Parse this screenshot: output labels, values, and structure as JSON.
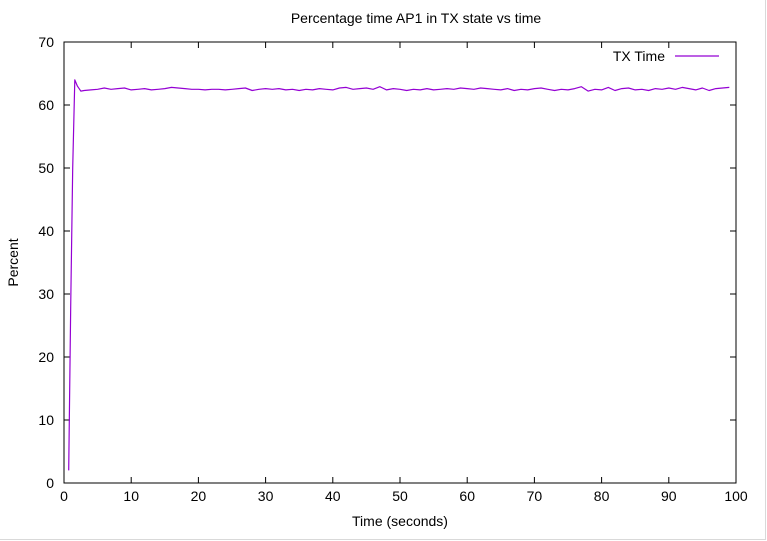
{
  "chart_data": {
    "type": "line",
    "title": "Percentage time AP1 in TX state vs time",
    "xlabel": "Time (seconds)",
    "ylabel": "Percent",
    "xlim": [
      0,
      100
    ],
    "ylim": [
      0,
      70
    ],
    "xticks": [
      0,
      10,
      20,
      30,
      40,
      50,
      60,
      70,
      80,
      90,
      100
    ],
    "yticks": [
      0,
      10,
      20,
      30,
      40,
      50,
      60,
      70
    ],
    "grid": false,
    "legend_position": "top-right",
    "series": [
      {
        "name": "TX Time",
        "color": "#9400d3",
        "x": [
          0.7,
          1.0,
          1.3,
          1.6,
          2.0,
          2.5,
          3,
          4,
          5,
          6,
          7,
          8,
          9,
          10,
          11,
          12,
          13,
          14,
          15,
          16,
          17,
          18,
          19,
          20,
          21,
          22,
          23,
          24,
          25,
          26,
          27,
          28,
          29,
          30,
          31,
          32,
          33,
          34,
          35,
          36,
          37,
          38,
          39,
          40,
          41,
          42,
          43,
          44,
          45,
          46,
          47,
          48,
          49,
          50,
          51,
          52,
          53,
          54,
          55,
          56,
          57,
          58,
          59,
          60,
          61,
          62,
          63,
          64,
          65,
          66,
          67,
          68,
          69,
          70,
          71,
          72,
          73,
          74,
          75,
          76,
          77,
          78,
          79,
          80,
          81,
          82,
          83,
          84,
          85,
          86,
          87,
          88,
          89,
          90,
          91,
          92,
          93,
          94,
          95,
          96,
          97,
          98,
          99
        ],
        "y": [
          2,
          28,
          50,
          64,
          63,
          62.2,
          62.3,
          62.4,
          62.5,
          62.7,
          62.5,
          62.6,
          62.7,
          62.4,
          62.5,
          62.6,
          62.4,
          62.5,
          62.6,
          62.8,
          62.7,
          62.6,
          62.5,
          62.5,
          62.4,
          62.5,
          62.5,
          62.4,
          62.5,
          62.6,
          62.7,
          62.3,
          62.5,
          62.6,
          62.5,
          62.6,
          62.4,
          62.5,
          62.3,
          62.5,
          62.4,
          62.6,
          62.5,
          62.4,
          62.7,
          62.8,
          62.5,
          62.6,
          62.7,
          62.5,
          62.9,
          62.4,
          62.6,
          62.5,
          62.3,
          62.5,
          62.4,
          62.6,
          62.4,
          62.5,
          62.6,
          62.5,
          62.7,
          62.6,
          62.5,
          62.7,
          62.6,
          62.5,
          62.4,
          62.6,
          62.3,
          62.5,
          62.4,
          62.6,
          62.7,
          62.5,
          62.3,
          62.5,
          62.4,
          62.6,
          62.9,
          62.2,
          62.5,
          62.4,
          62.8,
          62.3,
          62.6,
          62.7,
          62.4,
          62.5,
          62.3,
          62.6,
          62.5,
          62.7,
          62.5,
          62.8,
          62.6,
          62.4,
          62.7,
          62.3,
          62.6,
          62.7,
          62.8
        ]
      }
    ]
  }
}
